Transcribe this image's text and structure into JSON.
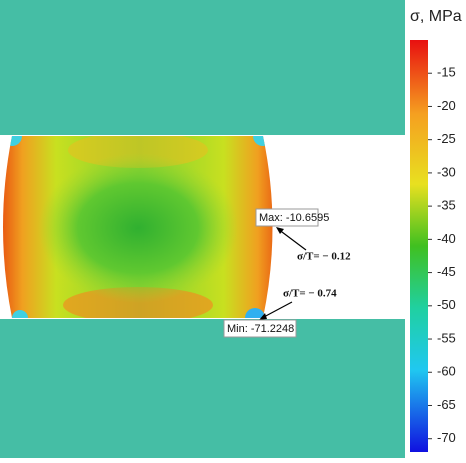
{
  "colorbar": {
    "title": "σ, MPa",
    "lim": [
      -72,
      -10
    ],
    "ticks": [
      -15,
      -20,
      -25,
      -30,
      -35,
      -40,
      -45,
      -50,
      -55,
      -60,
      -65,
      -70
    ]
  },
  "annotations": {
    "max": {
      "label": "Max:",
      "value": -10.6595
    },
    "min": {
      "label": "Min:",
      "value": -71.2248
    },
    "ratio_max": "σ/T= − 0.12",
    "ratio_min": "σ/T= − 0.74"
  }
}
